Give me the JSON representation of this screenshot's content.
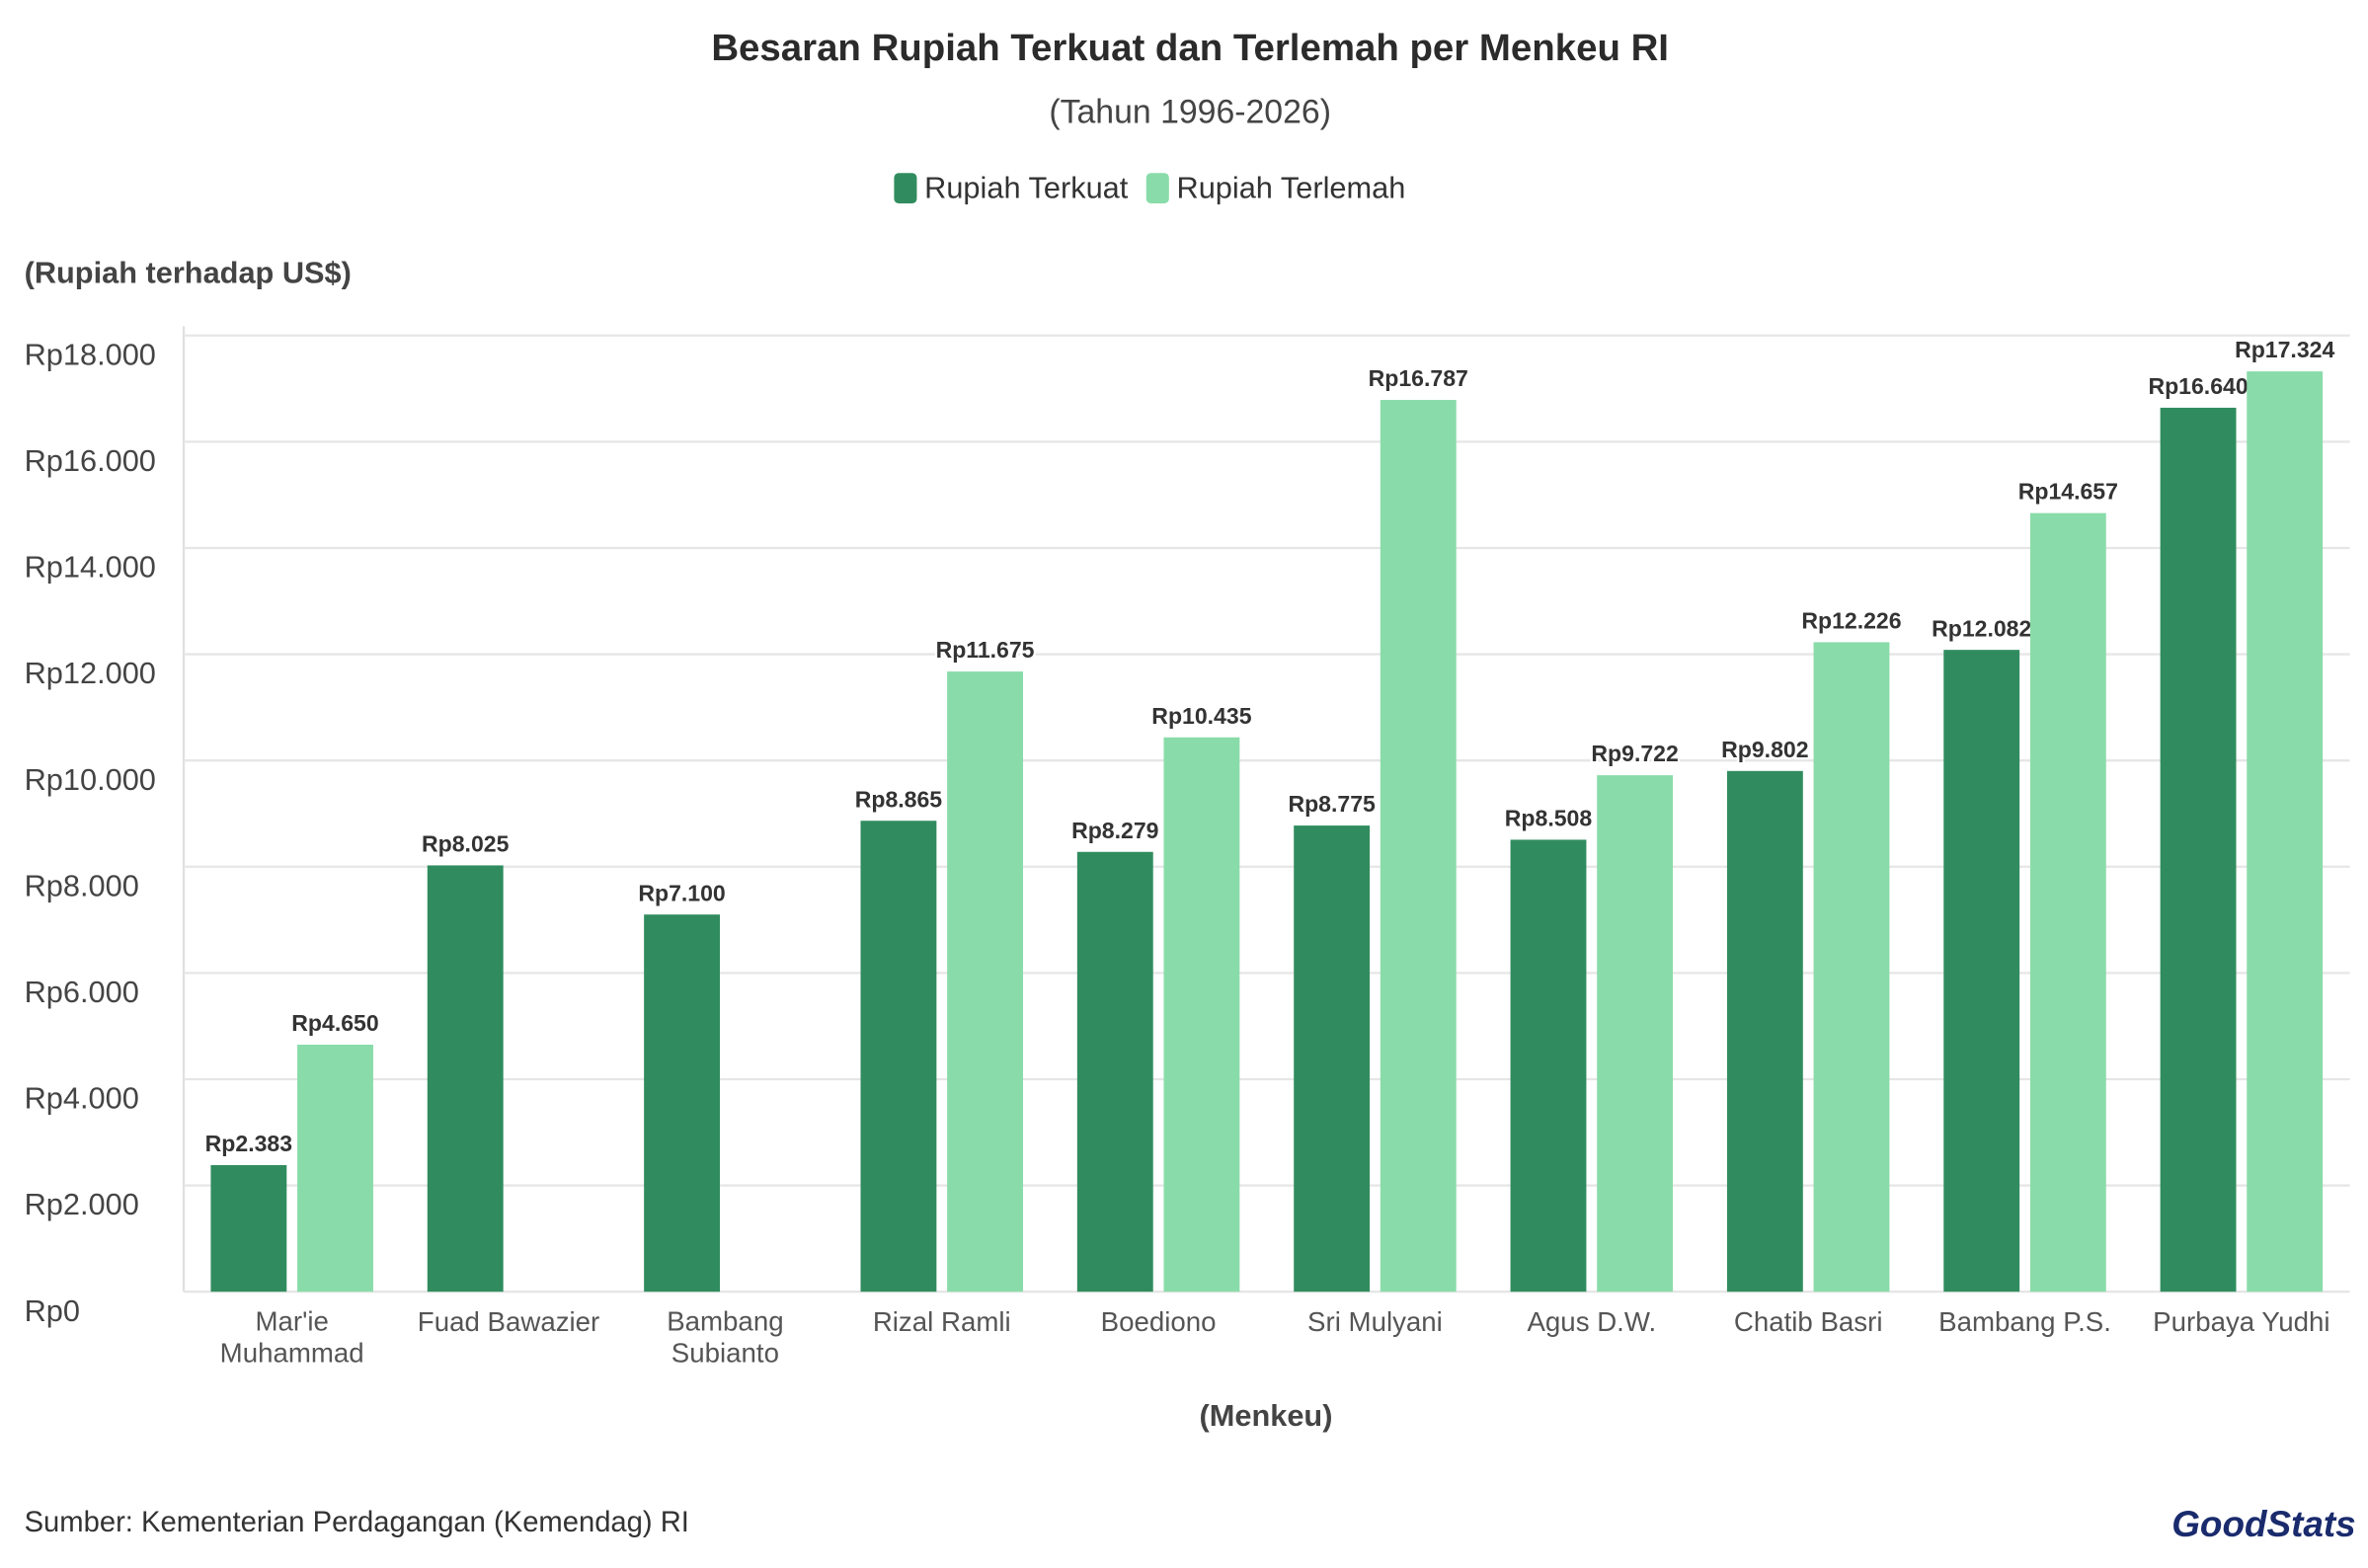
{
  "chart_data": {
    "type": "bar",
    "title": "Besaran Rupiah Terkuat dan Terlemah per Menkeu RI",
    "subtitle": "(Tahun 1996-2026)",
    "y_label": "(Rupiah terhadap US$)",
    "x_label": "(Menkeu)",
    "source": "Sumber: Kementerian Perdagangan (Kemendag) RI",
    "logo": "GoodStats",
    "categories": [
      "Mar'ie Muhammad",
      "Fuad Bawazier",
      "Bambang Subianto",
      "Rizal Ramli",
      "Boediono",
      "Sri Mulyani",
      "Agus D.W.",
      "Chatib Basri",
      "Bambang P.S.",
      "Purbaya Yudhi"
    ],
    "series": [
      {
        "name": "Rupiah Terkuat",
        "color": "#308c5e",
        "values": [
          2383,
          8025,
          7100,
          8865,
          8279,
          8775,
          8508,
          9802,
          12082,
          16640
        ],
        "value_labels": [
          "Rp2.383",
          "Rp8.025",
          "Rp7.100",
          "Rp8.865",
          "Rp8.279",
          "Rp8.775",
          "Rp8.508",
          "Rp9.802",
          "Rp12.082",
          "Rp16.640"
        ]
      },
      {
        "name": "Rupiah Terlemah",
        "color": "#89dca9",
        "values": [
          4650,
          null,
          null,
          11675,
          10435,
          16787,
          9722,
          12226,
          14657,
          17324
        ],
        "value_labels": [
          "Rp4.650",
          null,
          null,
          "Rp11.675",
          "Rp10.435",
          "Rp16.787",
          "Rp9.722",
          "Rp12.226",
          "Rp14.657",
          "Rp17.324"
        ]
      }
    ],
    "ylim": [
      0,
      18000
    ],
    "yticks": [
      {
        "value": 0,
        "label": "Rp0"
      },
      {
        "value": 2000,
        "label": "Rp2.000"
      },
      {
        "value": 4000,
        "label": "Rp4.000"
      },
      {
        "value": 6000,
        "label": "Rp6.000"
      },
      {
        "value": 8000,
        "label": "Rp8.000"
      },
      {
        "value": 10000,
        "label": "Rp10.000"
      },
      {
        "value": 12000,
        "label": "Rp12.000"
      },
      {
        "value": 14000,
        "label": "Rp14.000"
      },
      {
        "value": 16000,
        "label": "Rp16.000"
      },
      {
        "value": 18000,
        "label": "Rp18.000"
      }
    ],
    "grid": true
  }
}
